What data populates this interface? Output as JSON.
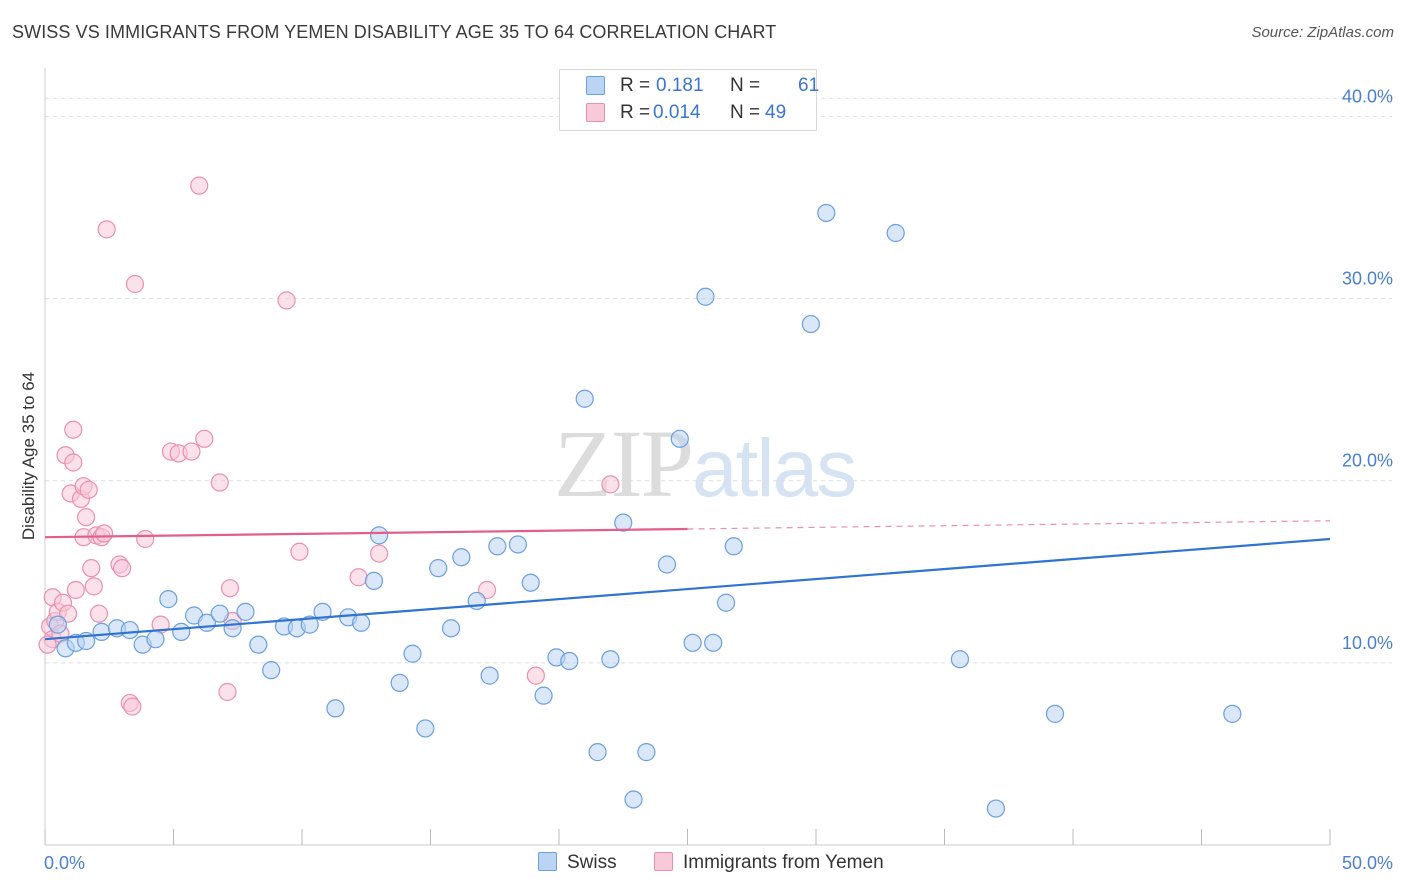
{
  "header": {
    "title": "SWISS VS IMMIGRANTS FROM YEMEN DISABILITY AGE 35 TO 64 CORRELATION CHART",
    "source": "Source: ZipAtlas.com"
  },
  "watermark": {
    "zip": "ZIP",
    "atlas": "atlas"
  },
  "legend": {
    "rows": [
      {
        "r_label": "R =",
        "r_value": "0.181",
        "n_label": "N =",
        "n_value": "61",
        "color": "#9fc3ee"
      },
      {
        "r_label": "R =",
        "r_value": "0.014",
        "n_label": "N =",
        "n_value": "49",
        "color": "#f4a9c0"
      }
    ]
  },
  "bottom_legend": {
    "items": [
      {
        "label": "Swiss",
        "color": "#9fc3ee"
      },
      {
        "label": "Immigrants from Yemen",
        "color": "#f4a9c0"
      }
    ]
  },
  "chart_data": {
    "type": "scatter",
    "title": "SWISS VS IMMIGRANTS FROM YEMEN DISABILITY AGE 35 TO 64 CORRELATION CHART",
    "xlabel": "",
    "ylabel": "Disability Age 35 to 64",
    "xlim": [
      0,
      50
    ],
    "ylim": [
      0,
      42
    ],
    "x_tick_labels": [
      "0.0%",
      "50.0%"
    ],
    "y_ticks": [
      10,
      20,
      30,
      40
    ],
    "y_tick_labels": [
      "10.0%",
      "20.0%",
      "30.0%",
      "40.0%"
    ],
    "grid": true,
    "legend_position": "top-center",
    "series": [
      {
        "name": "Swiss",
        "color": "#6a9fe0",
        "fill": "#bcd4f4",
        "line_color": "#2e74d0",
        "trend": {
          "x": [
            0,
            50
          ],
          "y": [
            11.3,
            16.8
          ],
          "dashed_from": null
        },
        "points": [
          [
            0.5,
            12.1
          ],
          [
            0.8,
            10.8
          ],
          [
            1.2,
            11.1
          ],
          [
            1.6,
            11.2
          ],
          [
            2.2,
            11.7
          ],
          [
            2.8,
            11.9
          ],
          [
            3.3,
            11.8
          ],
          [
            3.8,
            11.0
          ],
          [
            4.3,
            11.3
          ],
          [
            4.8,
            13.5
          ],
          [
            5.3,
            11.7
          ],
          [
            5.8,
            12.6
          ],
          [
            6.3,
            12.2
          ],
          [
            6.8,
            12.7
          ],
          [
            7.3,
            11.9
          ],
          [
            7.8,
            12.8
          ],
          [
            8.3,
            11.0
          ],
          [
            8.8,
            9.6
          ],
          [
            9.3,
            12.0
          ],
          [
            9.8,
            11.9
          ],
          [
            10.3,
            12.1
          ],
          [
            10.8,
            12.8
          ],
          [
            11.3,
            7.5
          ],
          [
            11.8,
            12.5
          ],
          [
            12.3,
            12.2
          ],
          [
            12.8,
            14.5
          ],
          [
            13.0,
            17.0
          ],
          [
            13.8,
            8.9
          ],
          [
            14.3,
            10.5
          ],
          [
            14.8,
            6.4
          ],
          [
            15.3,
            15.2
          ],
          [
            15.8,
            11.9
          ],
          [
            16.2,
            15.8
          ],
          [
            16.8,
            13.4
          ],
          [
            17.3,
            9.3
          ],
          [
            17.6,
            16.4
          ],
          [
            18.4,
            16.5
          ],
          [
            18.9,
            14.4
          ],
          [
            19.4,
            8.2
          ],
          [
            19.9,
            10.3
          ],
          [
            20.4,
            10.1
          ],
          [
            21.0,
            24.5
          ],
          [
            21.5,
            5.1
          ],
          [
            22.0,
            10.2
          ],
          [
            22.5,
            17.7
          ],
          [
            22.9,
            2.5
          ],
          [
            23.4,
            5.1
          ],
          [
            24.2,
            15.4
          ],
          [
            24.7,
            22.3
          ],
          [
            25.2,
            11.1
          ],
          [
            25.7,
            30.1
          ],
          [
            26.0,
            11.1
          ],
          [
            26.5,
            13.3
          ],
          [
            26.8,
            16.4
          ],
          [
            29.8,
            28.6
          ],
          [
            30.4,
            34.7
          ],
          [
            33.1,
            33.6
          ],
          [
            35.6,
            10.2
          ],
          [
            37.0,
            2.0
          ],
          [
            39.3,
            7.2
          ],
          [
            46.2,
            7.2
          ]
        ]
      },
      {
        "name": "Immigrants from Yemen",
        "color": "#ec8fae",
        "fill": "#f8c9d8",
        "line_color": "#e25f8d",
        "trend": {
          "x": [
            0,
            50
          ],
          "y": [
            16.9,
            17.8
          ],
          "dashed_from": 25
        },
        "points": [
          [
            0.2,
            12.0
          ],
          [
            0.3,
            11.3
          ],
          [
            0.3,
            13.6
          ],
          [
            0.4,
            12.3
          ],
          [
            0.5,
            12.8
          ],
          [
            0.6,
            11.6
          ],
          [
            0.7,
            13.3
          ],
          [
            0.8,
            21.4
          ],
          [
            0.9,
            12.7
          ],
          [
            1.0,
            19.3
          ],
          [
            1.1,
            21.0
          ],
          [
            1.1,
            22.8
          ],
          [
            1.2,
            14.0
          ],
          [
            1.4,
            19.0
          ],
          [
            1.5,
            19.7
          ],
          [
            1.5,
            16.9
          ],
          [
            1.6,
            18.0
          ],
          [
            1.7,
            19.5
          ],
          [
            1.8,
            15.2
          ],
          [
            1.9,
            14.2
          ],
          [
            2.0,
            17.0
          ],
          [
            2.1,
            12.7
          ],
          [
            2.2,
            16.9
          ],
          [
            2.3,
            17.1
          ],
          [
            2.4,
            33.8
          ],
          [
            2.9,
            15.4
          ],
          [
            3.0,
            15.2
          ],
          [
            3.3,
            7.8
          ],
          [
            3.4,
            7.6
          ],
          [
            3.5,
            30.8
          ],
          [
            3.9,
            16.8
          ],
          [
            4.5,
            12.1
          ],
          [
            4.9,
            21.6
          ],
          [
            5.2,
            21.5
          ],
          [
            5.7,
            21.6
          ],
          [
            6.0,
            36.2
          ],
          [
            6.2,
            22.3
          ],
          [
            6.8,
            19.9
          ],
          [
            7.1,
            8.4
          ],
          [
            7.2,
            14.1
          ],
          [
            7.3,
            12.3
          ],
          [
            9.4,
            29.9
          ],
          [
            9.9,
            16.1
          ],
          [
            12.2,
            14.7
          ],
          [
            13.0,
            16.0
          ],
          [
            17.2,
            14.0
          ],
          [
            19.1,
            9.3
          ],
          [
            22.0,
            19.8
          ],
          [
            0.1,
            11.0
          ]
        ]
      }
    ]
  }
}
